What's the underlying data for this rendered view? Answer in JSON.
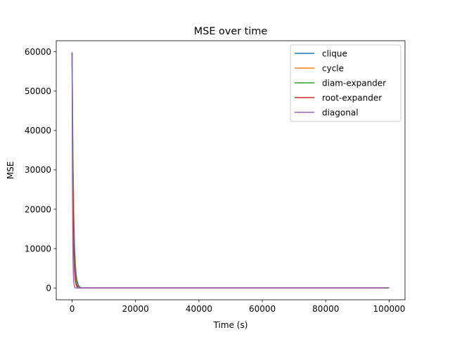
{
  "chart_data": {
    "type": "line",
    "title": "MSE over time",
    "xlabel": "Time (s)",
    "ylabel": "MSE",
    "xlim": [
      -5000,
      105000
    ],
    "ylim": [
      -3000,
      62800
    ],
    "xticks": [
      0,
      20000,
      40000,
      60000,
      80000,
      100000
    ],
    "yticks": [
      0,
      10000,
      20000,
      30000,
      40000,
      50000,
      60000
    ],
    "grid": false,
    "legend_position": "top-right",
    "series": [
      {
        "name": "clique",
        "color": "#1f77b4",
        "x": [
          0,
          100,
          250,
          500,
          750,
          1000,
          1250,
          1500,
          2000,
          2500,
          3000,
          3500,
          4000,
          5000,
          7000,
          10000,
          20000,
          40000,
          60000,
          80000,
          100000
        ],
        "y": [
          59800,
          47500,
          33900,
          19200,
          10900,
          6200,
          3500,
          2000,
          640,
          205,
          66,
          21,
          7,
          1,
          0,
          0,
          0,
          0,
          0,
          0,
          0
        ]
      },
      {
        "name": "cycle",
        "color": "#ff7f0e",
        "x": [
          0,
          100,
          250,
          500,
          750,
          1000,
          1250,
          1500,
          2000,
          2500,
          3000,
          4000,
          5000,
          7000,
          10000,
          20000,
          40000,
          60000,
          80000,
          100000
        ],
        "y": [
          59800,
          45200,
          29700,
          14700,
          7300,
          3600,
          1800,
          890,
          220,
          54,
          13,
          1,
          0,
          0,
          0,
          0,
          0,
          0,
          0,
          0
        ]
      },
      {
        "name": "diam-expander",
        "color": "#2ca02c",
        "x": [
          0,
          100,
          250,
          500,
          750,
          1000,
          1250,
          1500,
          2000,
          2500,
          3000,
          4000,
          5000,
          7000,
          10000,
          20000,
          40000,
          60000,
          80000,
          100000
        ],
        "y": [
          59800,
          44400,
          28400,
          13500,
          6400,
          3000,
          1450,
          690,
          155,
          35,
          8,
          0,
          0,
          0,
          0,
          0,
          0,
          0,
          0,
          0
        ]
      },
      {
        "name": "root-expander",
        "color": "#d62728",
        "x": [
          0,
          100,
          250,
          500,
          750,
          1000,
          1250,
          1500,
          2000,
          2500,
          3000,
          4000,
          5000,
          7000,
          10000,
          20000,
          40000,
          60000,
          80000,
          100000
        ],
        "y": [
          59800,
          42700,
          25800,
          11100,
          4800,
          2070,
          890,
          385,
          72,
          13,
          2,
          0,
          0,
          0,
          0,
          0,
          0,
          0,
          0,
          0
        ]
      },
      {
        "name": "diagonal",
        "color": "#9467bd",
        "x": [
          0,
          50,
          100,
          200,
          300,
          400,
          500,
          750,
          1000,
          1500,
          2000,
          3000,
          5000,
          10000,
          20000,
          40000,
          60000,
          80000,
          100000
        ],
        "y": [
          59800,
          41900,
          29300,
          14400,
          7000,
          3450,
          1690,
          285,
          48,
          1,
          0,
          0,
          0,
          0,
          0,
          0,
          0,
          0,
          0
        ]
      }
    ]
  }
}
